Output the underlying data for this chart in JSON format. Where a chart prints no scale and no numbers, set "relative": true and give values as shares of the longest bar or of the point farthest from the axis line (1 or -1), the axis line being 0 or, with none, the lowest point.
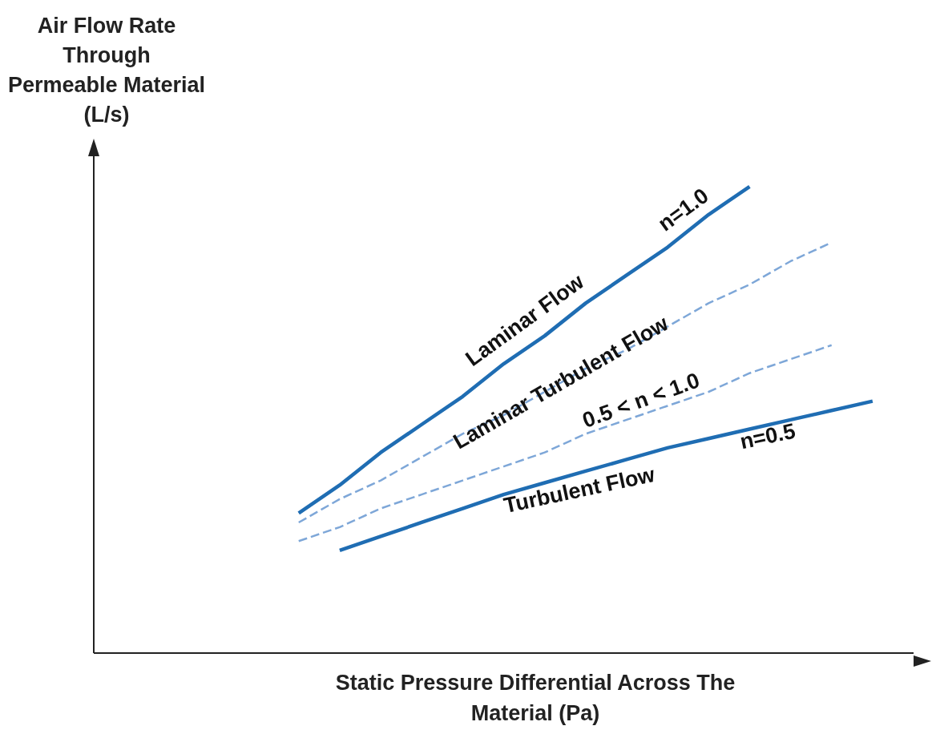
{
  "chart_data": {
    "type": "line",
    "relative": true,
    "xlabel": "Static Pressure Differential Across The Material (Pa)",
    "ylabel": "Air Flow Rate Through Permeable Material (L/s)",
    "categories": [
      null,
      null,
      null,
      null,
      null,
      null,
      null,
      null,
      null,
      null,
      null,
      null,
      null,
      null,
      null,
      null,
      null,
      null,
      null,
      null,
      null
    ],
    "marker": "none",
    "series": [
      {
        "color": "#1f6db3",
        "line_style": "solid",
        "values": [
          null,
          null,
          null,
          null,
          null,
          0.3,
          0.36,
          0.43,
          0.49,
          0.55,
          0.62,
          0.68,
          0.75,
          0.81,
          0.87,
          0.94,
          1.0,
          null,
          null,
          null,
          null
        ]
      },
      {
        "color": "#7ea7d8",
        "line_style": "dashed",
        "values": [
          null,
          null,
          null,
          null,
          null,
          0.28,
          0.33,
          0.37,
          0.42,
          0.47,
          0.51,
          0.56,
          0.61,
          0.65,
          0.7,
          0.75,
          0.79,
          0.84,
          0.88,
          null,
          null
        ]
      },
      {
        "color": "#7ea7d8",
        "line_style": "dashed",
        "values": [
          null,
          null,
          null,
          null,
          null,
          0.24,
          0.27,
          0.31,
          0.34,
          0.37,
          0.4,
          0.43,
          0.47,
          0.5,
          0.53,
          0.56,
          0.6,
          0.63,
          0.66,
          null,
          null
        ]
      },
      {
        "color": "#1f6db3",
        "line_style": "solid",
        "values": [
          null,
          null,
          null,
          null,
          null,
          null,
          0.22,
          0.25,
          0.28,
          0.31,
          0.34,
          0.365,
          0.39,
          0.415,
          0.44,
          0.46,
          0.48,
          0.5,
          0.52,
          0.54,
          null
        ]
      }
    ],
    "annotations": [
      "Laminar Flow",
      "n=1.0",
      "Laminar Turbulent Flow",
      "0.5 < n < 1.0",
      "Turbulent Flow",
      "n=0.5"
    ]
  }
}
